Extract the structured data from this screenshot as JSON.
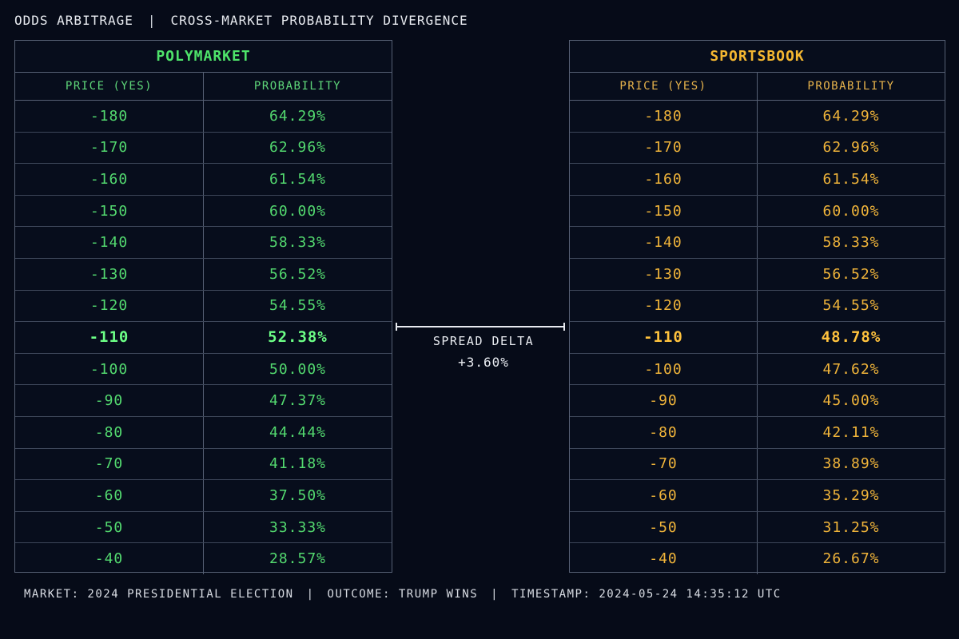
{
  "header": {
    "title": "ODDS ARBITRAGE",
    "separator": "|",
    "subtitle": "CROSS-MARKET PROBABILITY DIVERGENCE"
  },
  "columns": {
    "price": "PRICE (YES)",
    "probability": "PROBABILITY"
  },
  "polymarket": {
    "title": "POLYMARKET",
    "rows": [
      {
        "price": "-180",
        "prob": "64.29%"
      },
      {
        "price": "-170",
        "prob": "62.96%"
      },
      {
        "price": "-160",
        "prob": "61.54%"
      },
      {
        "price": "-150",
        "prob": "60.00%"
      },
      {
        "price": "-140",
        "prob": "58.33%"
      },
      {
        "price": "-130",
        "prob": "56.52%"
      },
      {
        "price": "-120",
        "prob": "54.55%"
      },
      {
        "price": "-110",
        "prob": "52.38%",
        "highlight": true
      },
      {
        "price": "-100",
        "prob": "50.00%"
      },
      {
        "price": "-90",
        "prob": "47.37%"
      },
      {
        "price": "-80",
        "prob": "44.44%"
      },
      {
        "price": "-70",
        "prob": "41.18%"
      },
      {
        "price": "-60",
        "prob": "37.50%"
      },
      {
        "price": "-50",
        "prob": "33.33%"
      },
      {
        "price": "-40",
        "prob": "28.57%"
      }
    ]
  },
  "sportsbook": {
    "title": "SPORTSBOOK",
    "rows": [
      {
        "price": "-180",
        "prob": "64.29%"
      },
      {
        "price": "-170",
        "prob": "62.96%"
      },
      {
        "price": "-160",
        "prob": "61.54%"
      },
      {
        "price": "-150",
        "prob": "60.00%"
      },
      {
        "price": "-140",
        "prob": "58.33%"
      },
      {
        "price": "-130",
        "prob": "56.52%"
      },
      {
        "price": "-120",
        "prob": "54.55%"
      },
      {
        "price": "-110",
        "prob": "48.78%",
        "highlight": true
      },
      {
        "price": "-100",
        "prob": "47.62%"
      },
      {
        "price": "-90",
        "prob": "45.00%"
      },
      {
        "price": "-80",
        "prob": "42.11%"
      },
      {
        "price": "-70",
        "prob": "38.89%"
      },
      {
        "price": "-60",
        "prob": "35.29%"
      },
      {
        "price": "-50",
        "prob": "31.25%"
      },
      {
        "price": "-40",
        "prob": "26.67%"
      }
    ]
  },
  "spread": {
    "label": "SPREAD DELTA",
    "value": "+3.60%"
  },
  "footer": {
    "market": "MARKET: 2024 PRESIDENTIAL ELECTION",
    "outcome": "OUTCOME: TRUMP WINS",
    "timestamp": "TIMESTAMP: 2024-05-24 14:35:12 UTC",
    "separator": "|"
  },
  "colors": {
    "background": "#060b18",
    "polymarket": "#4ee36a",
    "sportsbook": "#f4b731",
    "border": "#566074"
  }
}
